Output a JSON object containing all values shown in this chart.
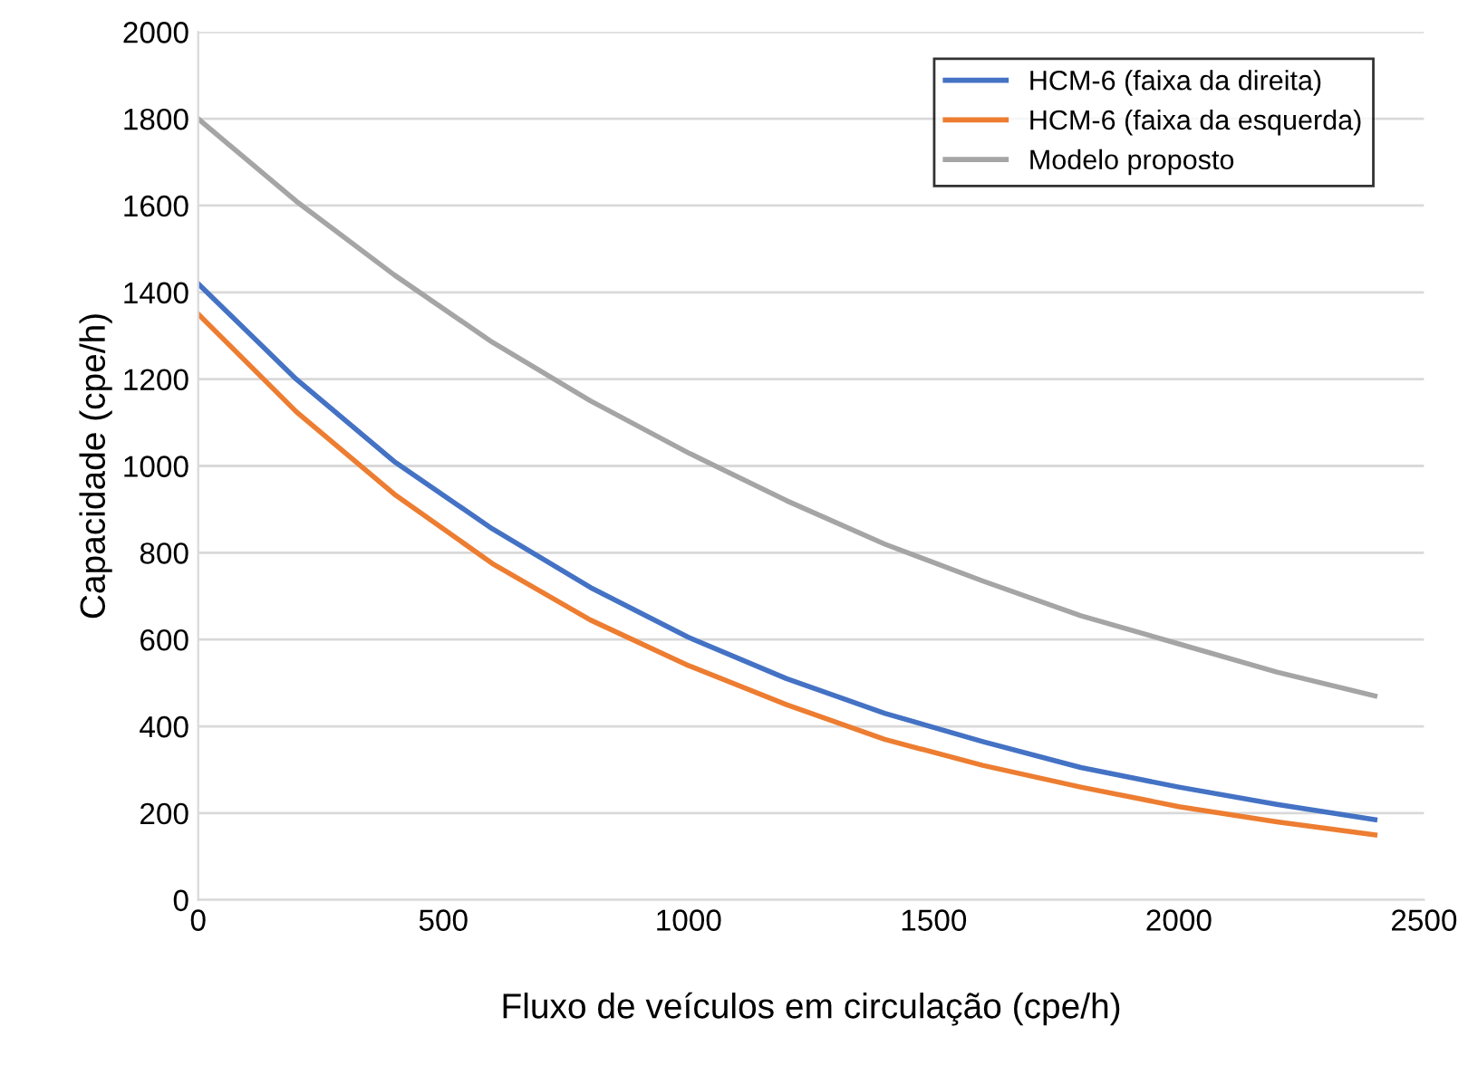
{
  "chart_data": {
    "type": "line",
    "xlabel": "Fluxo de veículos em circulação (cpe/h)",
    "ylabel": "Capacidade (cpe/h)",
    "x": [
      0,
      200,
      400,
      600,
      800,
      1000,
      1200,
      1400,
      1600,
      1800,
      2000,
      2200,
      2400
    ],
    "series": [
      {
        "name": "HCM-6 (faixa da direita)",
        "color": "#4472c4",
        "values": [
          1420,
          1200,
          1010,
          855,
          720,
          605,
          510,
          430,
          365,
          305,
          260,
          220,
          185
        ]
      },
      {
        "name": "HCM-6 (faixa da esquerda)",
        "color": "#ed7d31",
        "values": [
          1350,
          1125,
          935,
          775,
          645,
          540,
          450,
          370,
          310,
          260,
          215,
          180,
          150
        ]
      },
      {
        "name": "Modelo proposto",
        "color": "#a5a5a5",
        "values": [
          1800,
          1610,
          1440,
          1285,
          1150,
          1030,
          920,
          820,
          735,
          655,
          590,
          525,
          470
        ]
      }
    ],
    "xlim": [
      0,
      2500
    ],
    "xticks": [
      0,
      500,
      1000,
      1500,
      2000,
      2500
    ],
    "ylim": [
      0,
      2000
    ],
    "yticks": [
      0,
      200,
      400,
      600,
      800,
      1000,
      1200,
      1400,
      1600,
      1800,
      2000
    ],
    "grid": "y",
    "legend": "top right",
    "marker": "none",
    "line_style": "solid"
  }
}
